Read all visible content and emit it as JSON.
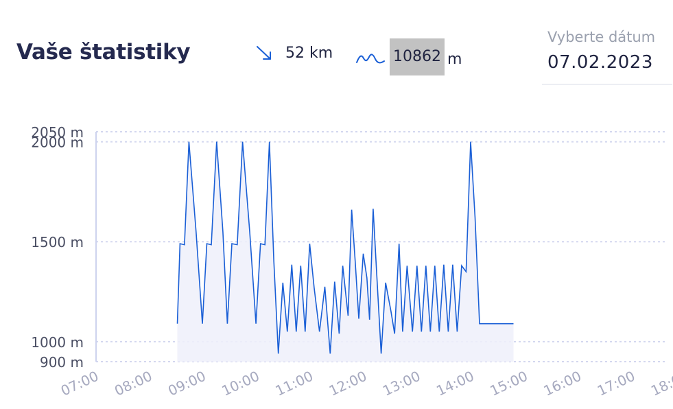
{
  "header": {
    "title": "Vaše štatistiky",
    "distance": {
      "icon": "descending-arrow-icon",
      "value": "52 km"
    },
    "elevation": {
      "icon": "mountain-line-icon",
      "value": "10862",
      "unit": "m"
    },
    "date_picker": {
      "label": "Vyberte dátum",
      "value": "07.02.2023"
    }
  },
  "colors": {
    "line": "#1a5fd6",
    "fill": "#eef0fa",
    "grid": "#d3d7ef",
    "axis": "#cdd3ee"
  },
  "chart_data": {
    "type": "area",
    "title": "",
    "xlabel": "",
    "ylabel": "",
    "y_ticks": [
      {
        "value": 2050,
        "label": "2050 m"
      },
      {
        "value": 2000,
        "label": "2000 m"
      },
      {
        "value": 1500,
        "label": "1500 m"
      },
      {
        "value": 1000,
        "label": "1000 m"
      },
      {
        "value": 900,
        "label": "900 m"
      }
    ],
    "x_ticks": [
      "07:00",
      "08:00",
      "09:00",
      "10:00",
      "11:00",
      "12:00",
      "13:00",
      "14:00",
      "15:00",
      "16:00",
      "17:00",
      "18:00"
    ],
    "xlim": [
      "07:00",
      "18:00"
    ],
    "ylim": [
      900,
      2050
    ],
    "grid": true,
    "series": [
      {
        "x": [
          "08:47",
          "08:50",
          "08:55",
          "09:00",
          "09:08",
          "09:15",
          "09:20",
          "09:25",
          "09:31",
          "09:38",
          "09:43",
          "09:48",
          "09:54",
          "10:00",
          "10:08",
          "10:15",
          "10:20",
          "10:25",
          "10:30",
          "10:35",
          "10:40",
          "10:45",
          "10:50",
          "10:55",
          "11:00",
          "11:05",
          "11:10",
          "11:15",
          "11:20",
          "11:26",
          "11:32",
          "11:38",
          "11:43",
          "11:48",
          "11:52",
          "11:58",
          "12:02",
          "12:06",
          "12:10",
          "12:15",
          "12:19",
          "12:22",
          "12:26",
          "12:30",
          "12:35",
          "12:40",
          "12:46",
          "12:50",
          "12:55",
          "12:59",
          "13:04",
          "13:10",
          "13:15",
          "13:20",
          "13:25",
          "13:30",
          "13:35",
          "13:40",
          "13:45",
          "13:50",
          "13:55",
          "14:00",
          "14:05",
          "14:10",
          "14:15",
          "14:20",
          "14:25",
          "14:30",
          "14:35",
          "14:40",
          "14:45",
          "14:50",
          "14:55",
          "15:00",
          "15:03"
        ],
        "y": [
          1090,
          1490,
          1485,
          2000,
          1550,
          1090,
          1490,
          1485,
          2000,
          1550,
          1090,
          1490,
          1485,
          2000,
          1550,
          1090,
          1490,
          1485,
          2000,
          1400,
          940,
          1295,
          1050,
          1385,
          1050,
          1380,
          1050,
          1490,
          1270,
          1050,
          1275,
          940,
          1300,
          1040,
          1380,
          1130,
          1660,
          1400,
          1115,
          1440,
          1320,
          1110,
          1665,
          1340,
          940,
          1295,
          1150,
          1040,
          1490,
          1050,
          1380,
          1050,
          1380,
          1050,
          1380,
          1050,
          1380,
          1050,
          1385,
          1050,
          1385,
          1050,
          1380,
          1350,
          2000,
          1620,
          1090,
          1090,
          1090,
          1090,
          1090,
          1090,
          1090,
          1090,
          1090
        ]
      }
    ]
  }
}
